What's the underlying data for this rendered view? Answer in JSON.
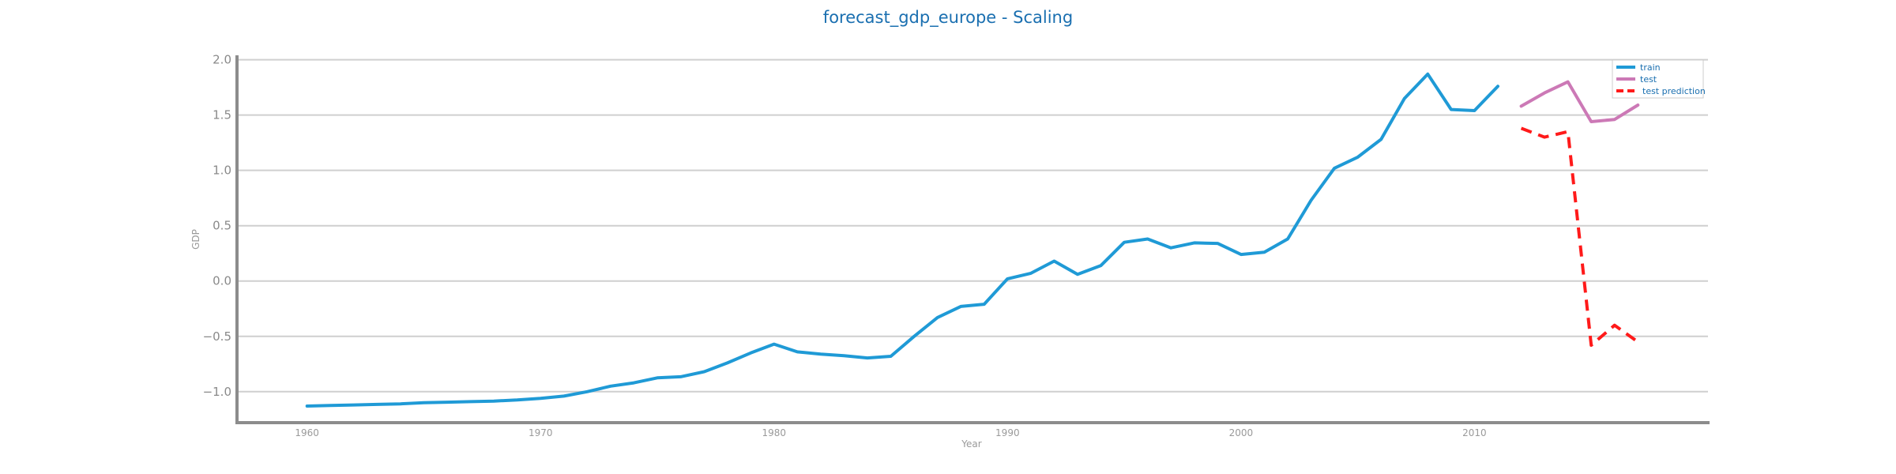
{
  "chart_data": {
    "type": "line",
    "title": "forecast_gdp_europe - Scaling",
    "xlabel": "Year",
    "ylabel": "GDP",
    "xlim": [
      1957,
      2020
    ],
    "ylim": [
      -1.28,
      2.04
    ],
    "x_ticks": [
      1960,
      1970,
      1980,
      1990,
      2000,
      2010
    ],
    "y_ticks": [
      2.0,
      1.5,
      1.0,
      0.5,
      0.0,
      -0.5,
      -1.0
    ],
    "y_tick_labels": [
      "2.0",
      "1.5",
      "1.0",
      "0.5",
      "0.0",
      "−0.5",
      "−1.0"
    ],
    "grid": "horizontal",
    "legend_position": "top-right",
    "series": [
      {
        "name": "train",
        "color": "#1f9ad6",
        "style": "solid",
        "x": [
          1960,
          1961,
          1962,
          1963,
          1964,
          1965,
          1966,
          1967,
          1968,
          1969,
          1970,
          1971,
          1972,
          1973,
          1974,
          1975,
          1976,
          1977,
          1978,
          1979,
          1980,
          1981,
          1982,
          1983,
          1984,
          1985,
          1986,
          1987,
          1988,
          1989,
          1990,
          1991,
          1992,
          1993,
          1994,
          1995,
          1996,
          1997,
          1998,
          1999,
          2000,
          2001,
          2002,
          2003,
          2004,
          2005,
          2006,
          2007,
          2008,
          2009,
          2010,
          2011
        ],
        "values": [
          -1.13,
          -1.125,
          -1.12,
          -1.115,
          -1.11,
          -1.1,
          -1.095,
          -1.09,
          -1.085,
          -1.075,
          -1.06,
          -1.04,
          -1.0,
          -0.95,
          -0.92,
          -0.875,
          -0.865,
          -0.82,
          -0.74,
          -0.65,
          -0.57,
          -0.64,
          -0.66,
          -0.675,
          -0.695,
          -0.68,
          -0.5,
          -0.33,
          -0.23,
          -0.21,
          0.02,
          0.07,
          0.18,
          0.06,
          0.14,
          0.35,
          0.38,
          0.3,
          0.345,
          0.34,
          0.24,
          0.26,
          0.38,
          0.73,
          1.02,
          1.12,
          1.28,
          1.65,
          1.87,
          1.55,
          1.54,
          1.76
        ]
      },
      {
        "name": "test",
        "color": "#cc79b6",
        "style": "solid",
        "x": [
          2012,
          2013,
          2014,
          2015,
          2016,
          2017
        ],
        "values": [
          1.58,
          1.7,
          1.8,
          1.44,
          1.46,
          1.59
        ]
      },
      {
        "name": "test prediction",
        "color": "#ff1a1a",
        "style": "dashed",
        "x": [
          2012,
          2013,
          2014,
          2015,
          2016,
          2017
        ],
        "values": [
          1.38,
          1.3,
          1.35,
          -0.58,
          -0.4,
          -0.55
        ]
      }
    ]
  }
}
